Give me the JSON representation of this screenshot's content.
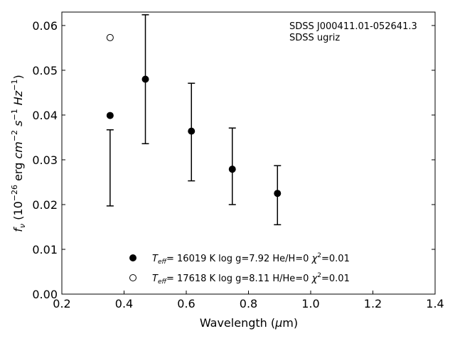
{
  "chart_data": {
    "type": "scatter",
    "xlabel": "Wavelength (μm)",
    "ylabel": "f_ν (10^-26 erg cm^-2 s^-1 Hz^-1)",
    "xlim": [
      0.2,
      1.4
    ],
    "ylim": [
      0.0,
      0.063
    ],
    "xticks": [
      0.2,
      0.4,
      0.6,
      0.8,
      1.0,
      1.2,
      1.4
    ],
    "xtick_labels": [
      "0.2",
      "0.4",
      "0.6",
      "0.8",
      "1.0",
      "1.2",
      "1.4"
    ],
    "yticks": [
      0.0,
      0.01,
      0.02,
      0.03,
      0.04,
      0.05,
      0.06
    ],
    "ytick_labels": [
      "0.00",
      "0.01",
      "0.02",
      "0.03",
      "0.04",
      "0.05",
      "0.06"
    ],
    "grid": false,
    "annotation": [
      "SDSS J000411.01-052641.3",
      "SDSS ugriz"
    ],
    "observed": {
      "x": [
        0.3551,
        0.4686,
        0.6166,
        0.748,
        0.8932
      ],
      "y_low": [
        0.0197,
        0.0336,
        0.0253,
        0.02,
        0.0155
      ],
      "y_high": [
        0.0367,
        0.0624,
        0.0471,
        0.0371,
        0.0287
      ]
    },
    "series": [
      {
        "marker": "filled",
        "x": [
          0.3551,
          0.4686,
          0.6166,
          0.748,
          0.8932
        ],
        "y": [
          0.0399,
          0.048,
          0.0364,
          0.0279,
          0.0225
        ],
        "label": {
          "teff_value": "= 16019 K  log g=7.92  He/H=0  ",
          "chi_value": "=0.01"
        }
      },
      {
        "marker": "open",
        "x": [
          0.3551
        ],
        "y": [
          0.0573
        ],
        "label": {
          "teff_value": "= 17618 K  log g=8.11  H/He=0  ",
          "chi_value": "=0.01"
        }
      }
    ],
    "legend_position": "lower-center",
    "colors": {
      "marker": "#000000",
      "axes": "#000000",
      "background": "#ffffff"
    }
  }
}
